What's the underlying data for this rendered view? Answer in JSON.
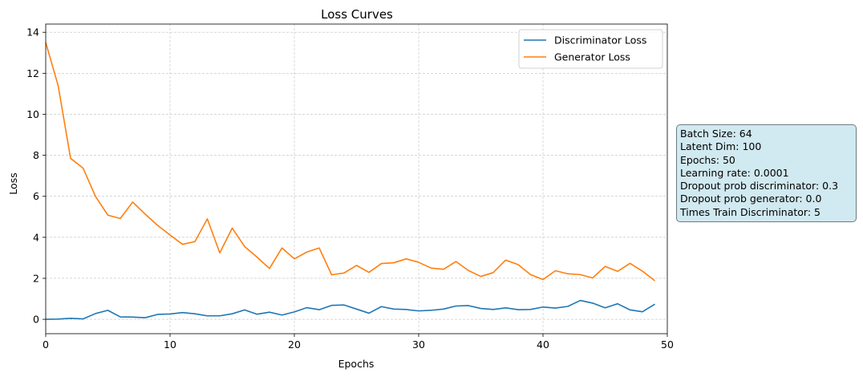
{
  "chart_data": {
    "type": "line",
    "title": "Loss Curves",
    "xlabel": "Epochs",
    "ylabel": "Loss",
    "xlim": [
      0,
      50
    ],
    "ylim": [
      -0.7,
      14.4
    ],
    "xticks": [
      0,
      10,
      20,
      30,
      40,
      50
    ],
    "yticks": [
      0,
      2,
      4,
      6,
      8,
      10,
      12,
      14
    ],
    "grid": true,
    "legend_position": "top-right",
    "x": [
      0,
      1,
      2,
      3,
      4,
      5,
      6,
      7,
      8,
      9,
      10,
      11,
      12,
      13,
      14,
      15,
      16,
      17,
      18,
      19,
      20,
      21,
      22,
      23,
      24,
      25,
      26,
      27,
      28,
      29,
      30,
      31,
      32,
      33,
      34,
      35,
      36,
      37,
      38,
      39,
      40,
      41,
      42,
      43,
      44,
      45,
      46,
      47,
      48,
      49
    ],
    "series": [
      {
        "name": "Discriminator Loss",
        "color": "#1f77b4",
        "values": [
          0.0,
          0.01,
          0.05,
          0.02,
          0.28,
          0.44,
          0.12,
          0.11,
          0.08,
          0.24,
          0.26,
          0.33,
          0.27,
          0.17,
          0.17,
          0.27,
          0.46,
          0.25,
          0.35,
          0.21,
          0.36,
          0.57,
          0.47,
          0.68,
          0.7,
          0.5,
          0.3,
          0.62,
          0.5,
          0.48,
          0.41,
          0.44,
          0.5,
          0.65,
          0.67,
          0.53,
          0.48,
          0.56,
          0.47,
          0.48,
          0.6,
          0.55,
          0.63,
          0.92,
          0.79,
          0.56,
          0.76,
          0.46,
          0.37,
          0.74
        ]
      },
      {
        "name": "Generator Loss",
        "color": "#ff7f0e",
        "values": [
          13.5,
          11.4,
          7.85,
          7.38,
          6.0,
          5.08,
          4.92,
          5.72,
          5.13,
          4.58,
          4.11,
          3.66,
          3.79,
          4.9,
          3.24,
          4.45,
          3.55,
          3.03,
          2.48,
          3.48,
          2.95,
          3.28,
          3.48,
          2.17,
          2.26,
          2.63,
          2.29,
          2.72,
          2.76,
          2.95,
          2.78,
          2.5,
          2.44,
          2.82,
          2.38,
          2.09,
          2.28,
          2.89,
          2.67,
          2.18,
          1.94,
          2.37,
          2.22,
          2.18,
          2.02,
          2.58,
          2.34,
          2.73,
          2.35,
          1.88
        ]
      }
    ]
  },
  "info_box": {
    "lines": [
      "Batch Size: 64",
      "Latent Dim: 100",
      "Epochs: 50",
      "Learning rate: 0.0001",
      "Dropout prob discriminator: 0.3",
      "Dropout prob generator: 0.0",
      "Times Train Discriminator: 5"
    ],
    "background": "#d1e9f0"
  }
}
